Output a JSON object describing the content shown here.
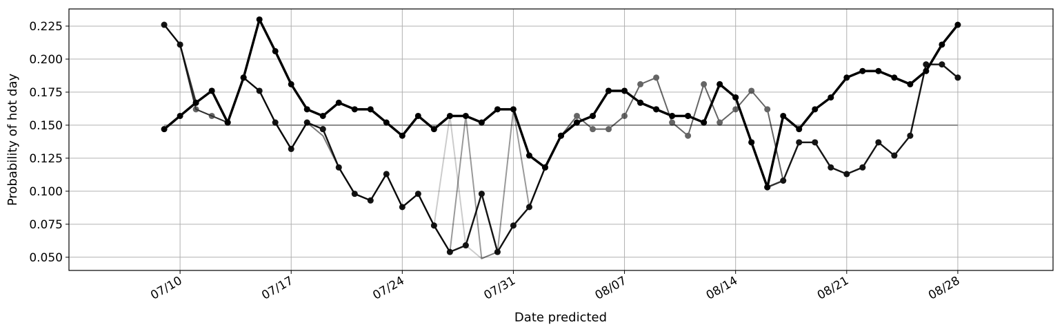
{
  "chart_data": {
    "type": "line",
    "xlabel": "Date predicted",
    "ylabel": "Probability of hot day",
    "grid": true,
    "x_ticks": [
      "07/10",
      "07/17",
      "07/24",
      "07/31",
      "08/07",
      "08/14",
      "08/21",
      "08/28"
    ],
    "x_tick_dates": [
      "2020-07-10",
      "2020-07-17",
      "2020-07-24",
      "2020-07-31",
      "2020-08-07",
      "2020-08-14",
      "2020-08-21",
      "2020-08-28"
    ],
    "y_ticks": [
      "0.050",
      "0.075",
      "0.100",
      "0.125",
      "0.150",
      "0.175",
      "0.200",
      "0.225"
    ],
    "xlim": [
      "2020-07-03",
      "2020-09-03"
    ],
    "ylim": [
      0.04,
      0.238
    ],
    "x": [
      "2020-07-09",
      "2020-07-10",
      "2020-07-11",
      "2020-07-12",
      "2020-07-13",
      "2020-07-14",
      "2020-07-15",
      "2020-07-16",
      "2020-07-17",
      "2020-07-18",
      "2020-07-19",
      "2020-07-20",
      "2020-07-21",
      "2020-07-22",
      "2020-07-23",
      "2020-07-24",
      "2020-07-25",
      "2020-07-26",
      "2020-07-27",
      "2020-07-28",
      "2020-07-29",
      "2020-07-30",
      "2020-07-31",
      "2020-08-01",
      "2020-08-02",
      "2020-08-03",
      "2020-08-04",
      "2020-08-05",
      "2020-08-06",
      "2020-08-07",
      "2020-08-08",
      "2020-08-09",
      "2020-08-10",
      "2020-08-11",
      "2020-08-12",
      "2020-08-13",
      "2020-08-14",
      "2020-08-15",
      "2020-08-16",
      "2020-08-17",
      "2020-08-18",
      "2020-08-19",
      "2020-08-20",
      "2020-08-21",
      "2020-08-22",
      "2020-08-23",
      "2020-08-24",
      "2020-08-25",
      "2020-08-26",
      "2020-08-27",
      "2020-08-28"
    ],
    "reference_line": {
      "y": 0.15,
      "x_range": [
        "2020-07-09",
        "2020-08-28"
      ],
      "color": "#888888"
    },
    "series": [
      {
        "color": "#000000",
        "alpha": 0.2,
        "linewidth": 2,
        "marker": false,
        "values": [
          0.226,
          0.211,
          0.162,
          0.157,
          0.152,
          0.186,
          0.176,
          0.152,
          0.132,
          0.152,
          0.142,
          0.118,
          0.098,
          0.093,
          0.113,
          0.088,
          0.098,
          0.074,
          0.157,
          0.059,
          0.049,
          0.054,
          0.074,
          0.088,
          0.118,
          0.142,
          0.152,
          0.157,
          0.176,
          0.176,
          0.167,
          0.162,
          0.157,
          0.157,
          0.152,
          0.181,
          0.171,
          0.137,
          0.103,
          0.157,
          0.147,
          0.162,
          0.171,
          0.186,
          0.191,
          0.191,
          0.186,
          0.181,
          0.191,
          0.211,
          0.226
        ]
      },
      {
        "color": "#000000",
        "alpha": 0.4,
        "linewidth": 2,
        "marker": false,
        "values": [
          0.226,
          0.211,
          0.162,
          0.157,
          0.152,
          0.186,
          0.176,
          0.152,
          0.132,
          0.152,
          0.142,
          0.118,
          0.098,
          0.093,
          0.113,
          0.088,
          0.098,
          0.074,
          0.054,
          0.157,
          0.049,
          0.054,
          0.162,
          0.088,
          0.118,
          0.142,
          0.152,
          0.157,
          0.176,
          0.176,
          0.167,
          0.162,
          0.157,
          0.157,
          0.152,
          0.181,
          0.171,
          0.137,
          0.103,
          0.157,
          0.147,
          0.162,
          0.171,
          0.186,
          0.191,
          0.191,
          0.186,
          0.181,
          0.191,
          0.211,
          0.226
        ]
      },
      {
        "color": "#000000",
        "alpha": 0.6,
        "linewidth": 2,
        "marker": true,
        "values": [
          0.226,
          0.211,
          0.162,
          0.157,
          0.152,
          0.186,
          0.176,
          0.152,
          0.132,
          0.152,
          0.147,
          0.118,
          0.098,
          0.093,
          0.113,
          0.088,
          0.098,
          0.074,
          0.054,
          0.059,
          0.098,
          0.054,
          0.074,
          0.088,
          0.118,
          0.142,
          0.157,
          0.147,
          0.147,
          0.157,
          0.181,
          0.186,
          0.152,
          0.142,
          0.181,
          0.152,
          0.162,
          0.176,
          0.162,
          0.108,
          0.137,
          0.137,
          0.118,
          0.113,
          0.118,
          0.137,
          0.127,
          0.142,
          0.196,
          0.196,
          0.186
        ]
      },
      {
        "color": "#000000",
        "alpha": 0.8,
        "linewidth": 2.5,
        "marker": true,
        "values": [
          0.226,
          0.211,
          0.167,
          0.176,
          0.152,
          0.186,
          0.176,
          0.152,
          0.132,
          0.152,
          0.147,
          0.118,
          0.098,
          0.093,
          0.113,
          0.088,
          0.098,
          0.074,
          0.054,
          0.059,
          0.098,
          0.054,
          0.074,
          0.088,
          0.118,
          0.142,
          0.152,
          0.157,
          0.176,
          0.176,
          0.167,
          0.162,
          0.157,
          0.157,
          0.152,
          0.181,
          0.171,
          0.137,
          0.103,
          0.108,
          0.137,
          0.137,
          0.118,
          0.113,
          0.118,
          0.137,
          0.127,
          0.142,
          0.196,
          0.196,
          0.186
        ]
      },
      {
        "color": "#000000",
        "alpha": 1.0,
        "linewidth": 3.5,
        "marker": true,
        "values": [
          0.147,
          0.157,
          0.167,
          0.176,
          0.152,
          0.186,
          0.23,
          0.206,
          0.181,
          0.162,
          0.157,
          0.167,
          0.162,
          0.162,
          0.152,
          0.142,
          0.157,
          0.147,
          0.157,
          0.157,
          0.152,
          0.162,
          0.162,
          0.127,
          0.118,
          0.142,
          0.152,
          0.157,
          0.176,
          0.176,
          0.167,
          0.162,
          0.157,
          0.157,
          0.152,
          0.181,
          0.171,
          0.137,
          0.103,
          0.157,
          0.147,
          0.162,
          0.171,
          0.186,
          0.191,
          0.191,
          0.186,
          0.181,
          0.191,
          0.211,
          0.226
        ]
      }
    ]
  }
}
